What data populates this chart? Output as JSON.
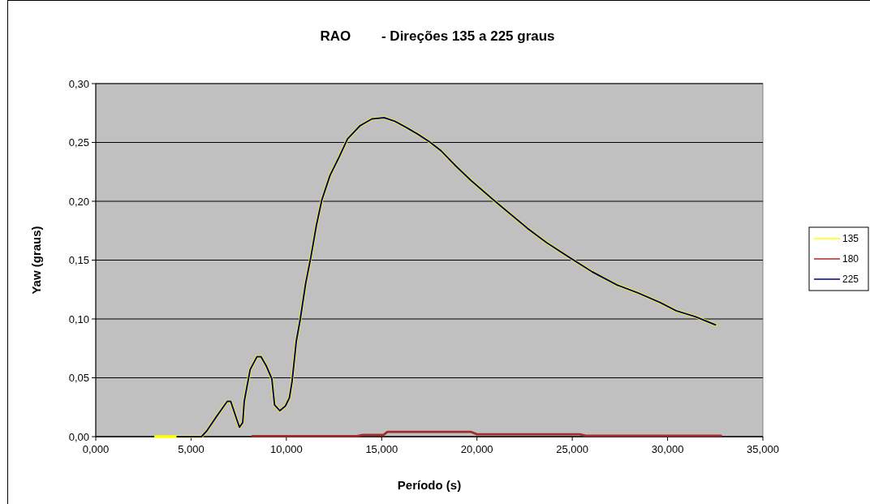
{
  "chart_data": {
    "type": "line",
    "title": "RAO        - Direções 135 a 225 graus",
    "xlabel": "Período (s)",
    "ylabel": "Yaw (graus)",
    "xlim": [
      0,
      35
    ],
    "xticks": [
      {
        "value": 0,
        "label": "0,000"
      },
      {
        "value": 5,
        "label": "5,000"
      },
      {
        "value": 10,
        "label": "10,000"
      },
      {
        "value": 15,
        "label": "15,000"
      },
      {
        "value": 20,
        "label": "20,000"
      },
      {
        "value": 25,
        "label": "25,000"
      },
      {
        "value": 30,
        "label": "30,000"
      },
      {
        "value": 35,
        "label": "35,000"
      }
    ],
    "ylim": [
      0,
      0.3
    ],
    "yticks": [
      {
        "value": 0,
        "label": "0,00"
      },
      {
        "value": 0.05,
        "label": "0,05"
      },
      {
        "value": 0.1,
        "label": "0,10"
      },
      {
        "value": 0.15,
        "label": "0,15"
      },
      {
        "value": 0.2,
        "label": "0,20"
      },
      {
        "value": 0.25,
        "label": "0,25"
      },
      {
        "value": 0.3,
        "label": "0,30"
      }
    ],
    "grid": "y",
    "legend": "right",
    "marker": "none",
    "series": [
      {
        "name": "135",
        "color": "#ffff00",
        "x": [
          3.14,
          3.92,
          4.27,
          5.55,
          5.83,
          6.33,
          6.9,
          7.08,
          7.39,
          7.54,
          7.71,
          7.79,
          8.1,
          8.46,
          8.67,
          8.95,
          9.24,
          9.38,
          9.66,
          9.95,
          10.16,
          10.3,
          10.52,
          10.73,
          11.01,
          11.29,
          11.58,
          11.86,
          12.29,
          12.72,
          13.21,
          13.85,
          14.49,
          15.13,
          15.69,
          16.26,
          16.9,
          17.47,
          18.11,
          18.89,
          19.67,
          20.8,
          22.65,
          23.64,
          24.78,
          26.05,
          27.33,
          28.47,
          29.6,
          30.45,
          31.45,
          32.51
        ],
        "values": [
          0,
          0,
          0,
          0,
          0.005,
          0.017,
          0.03,
          0.03,
          0.015,
          0.008,
          0.012,
          0.03,
          0.057,
          0.068,
          0.068,
          0.06,
          0.049,
          0.027,
          0.022,
          0.026,
          0.033,
          0.047,
          0.081,
          0.1,
          0.13,
          0.153,
          0.18,
          0.201,
          0.222,
          0.236,
          0.253,
          0.264,
          0.27,
          0.271,
          0.268,
          0.263,
          0.257,
          0.251,
          0.243,
          0.23,
          0.218,
          0.202,
          0.177,
          0.165,
          0.153,
          0.14,
          0.129,
          0.122,
          0.114,
          0.107,
          0.102,
          0.095
        ]
      },
      {
        "name": "180",
        "color": "#a52a2a",
        "x": [
          8.22,
          13.71,
          14,
          15.1,
          15.3,
          19.7,
          20,
          25.4,
          25.7,
          32.8
        ],
        "values": [
          0.0005,
          0.0005,
          0.0015,
          0.0015,
          0.004,
          0.004,
          0.002,
          0.002,
          0.0008,
          0.0008
        ]
      },
      {
        "name": "225",
        "color": "#000080",
        "x": [
          4.27,
          5.55,
          5.83,
          6.33,
          6.9,
          7.08,
          7.39,
          7.54,
          7.71,
          7.79,
          8.1,
          8.46,
          8.67,
          8.95,
          9.24,
          9.38,
          9.66,
          9.95,
          10.16,
          10.3,
          10.52,
          10.73,
          11.01,
          11.29,
          11.58,
          11.86,
          12.29,
          12.72,
          13.21,
          13.85,
          14.49,
          15.13,
          15.69,
          16.26,
          16.9,
          17.47,
          18.11,
          18.89,
          19.67,
          20.8,
          22.65,
          23.64,
          24.78,
          26.05,
          27.33,
          28.47,
          29.6,
          30.45,
          31.45,
          32.51
        ],
        "values": [
          0,
          0,
          0.005,
          0.017,
          0.03,
          0.03,
          0.015,
          0.008,
          0.012,
          0.03,
          0.057,
          0.068,
          0.068,
          0.06,
          0.049,
          0.027,
          0.022,
          0.026,
          0.033,
          0.047,
          0.081,
          0.1,
          0.13,
          0.153,
          0.18,
          0.201,
          0.222,
          0.236,
          0.253,
          0.264,
          0.27,
          0.271,
          0.268,
          0.263,
          0.257,
          0.251,
          0.243,
          0.23,
          0.218,
          0.202,
          0.177,
          0.165,
          0.153,
          0.14,
          0.129,
          0.122,
          0.114,
          0.107,
          0.102,
          0.095
        ]
      }
    ]
  }
}
